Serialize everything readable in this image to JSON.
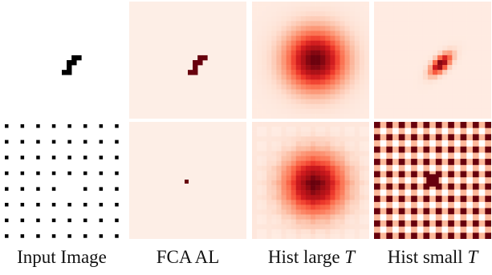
{
  "columns": [
    {
      "id": "input",
      "caption": "Input Image",
      "caption_var": ""
    },
    {
      "id": "fca",
      "caption": "FCA AL",
      "caption_var": ""
    },
    {
      "id": "hist_large",
      "caption": "Hist large ",
      "caption_var": "T"
    },
    {
      "id": "hist_small",
      "caption": "Hist small ",
      "caption_var": "T"
    }
  ],
  "colors": {
    "background": "#ffffff",
    "peak": "#67000d",
    "pale": "#fdeee6",
    "checker_light": "#fcb99b",
    "dot": "#000000"
  }
}
